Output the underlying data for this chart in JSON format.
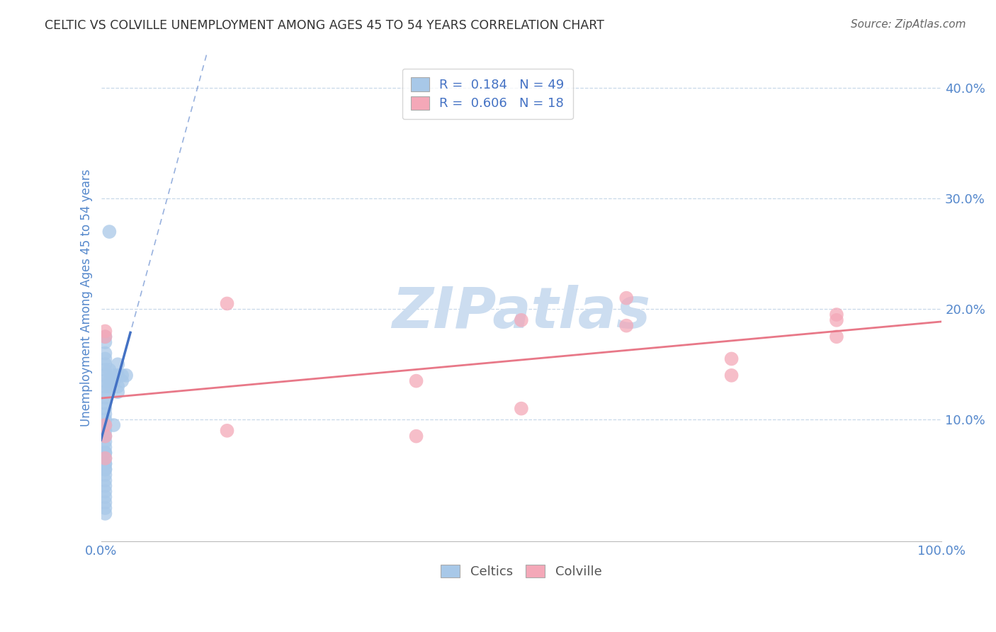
{
  "title": "CELTIC VS COLVILLE UNEMPLOYMENT AMONG AGES 45 TO 54 YEARS CORRELATION CHART",
  "source": "Source: ZipAtlas.com",
  "ylabel": "Unemployment Among Ages 45 to 54 years",
  "xlim": [
    0.0,
    1.0
  ],
  "ylim": [
    -0.01,
    0.43
  ],
  "yticks": [
    0.0,
    0.1,
    0.2,
    0.3,
    0.4
  ],
  "ytick_labels": [
    "",
    "10.0%",
    "20.0%",
    "30.0%",
    "40.0%"
  ],
  "xticks": [
    0.0,
    0.25,
    0.5,
    0.75,
    1.0
  ],
  "xtick_labels": [
    "0.0%",
    "",
    "",
    "",
    "100.0%"
  ],
  "celtics_R": 0.184,
  "celtics_N": 49,
  "colville_R": 0.606,
  "colville_N": 18,
  "celtics_color": "#a8c8e8",
  "colville_color": "#f4a8b8",
  "celtics_line_color": "#4472c4",
  "colville_line_color": "#e87888",
  "background_color": "#ffffff",
  "grid_color": "#c8d8e8",
  "title_color": "#333333",
  "axis_label_color": "#5588cc",
  "legend_R_color": "#4472c4",
  "celtics_x": [
    0.01,
    0.005,
    0.005,
    0.005,
    0.005,
    0.005,
    0.005,
    0.005,
    0.005,
    0.005,
    0.005,
    0.005,
    0.005,
    0.005,
    0.005,
    0.005,
    0.005,
    0.005,
    0.005,
    0.005,
    0.005,
    0.005,
    0.005,
    0.005,
    0.005,
    0.005,
    0.005,
    0.005,
    0.005,
    0.005,
    0.005,
    0.005,
    0.01,
    0.01,
    0.01,
    0.015,
    0.015,
    0.015,
    0.02,
    0.02,
    0.02,
    0.02,
    0.025,
    0.025,
    0.03,
    0.005,
    0.005,
    0.005,
    0.005
  ],
  "celtics_y": [
    0.27,
    0.175,
    0.17,
    0.16,
    0.155,
    0.15,
    0.145,
    0.14,
    0.135,
    0.13,
    0.125,
    0.12,
    0.115,
    0.11,
    0.105,
    0.1,
    0.095,
    0.09,
    0.085,
    0.08,
    0.075,
    0.07,
    0.065,
    0.06,
    0.055,
    0.05,
    0.045,
    0.04,
    0.035,
    0.03,
    0.025,
    0.02,
    0.145,
    0.135,
    0.13,
    0.14,
    0.135,
    0.095,
    0.15,
    0.14,
    0.13,
    0.125,
    0.14,
    0.135,
    0.14,
    0.07,
    0.06,
    0.055,
    0.015
  ],
  "colville_x": [
    0.005,
    0.005,
    0.005,
    0.005,
    0.005,
    0.15,
    0.15,
    0.375,
    0.375,
    0.5,
    0.5,
    0.625,
    0.625,
    0.75,
    0.75,
    0.875,
    0.875,
    0.875
  ],
  "colville_y": [
    0.18,
    0.175,
    0.095,
    0.085,
    0.065,
    0.205,
    0.09,
    0.135,
    0.085,
    0.19,
    0.11,
    0.21,
    0.185,
    0.155,
    0.14,
    0.195,
    0.19,
    0.175
  ],
  "watermark_text": "ZIPatlas",
  "watermark_color": "#ccddf0"
}
